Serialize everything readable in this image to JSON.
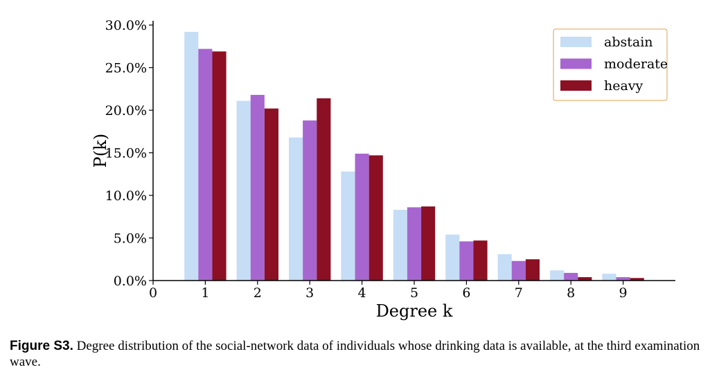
{
  "chart_data": {
    "type": "bar",
    "categories": [
      "1",
      "2",
      "3",
      "4",
      "5",
      "6",
      "7",
      "8",
      "9"
    ],
    "x": [
      1,
      2,
      3,
      4,
      5,
      6,
      7,
      8,
      9
    ],
    "series": [
      {
        "name": "abstain",
        "color": "#c5ddf5",
        "values": [
          29.2,
          21.1,
          16.8,
          12.8,
          8.3,
          5.4,
          3.1,
          1.2,
          0.8
        ]
      },
      {
        "name": "moderate",
        "color": "#a766cf",
        "values": [
          27.2,
          21.8,
          18.8,
          14.9,
          8.6,
          4.6,
          2.3,
          0.9,
          0.4
        ]
      },
      {
        "name": "heavy",
        "color": "#8b1023",
        "values": [
          26.9,
          20.2,
          21.4,
          14.7,
          8.7,
          4.7,
          2.5,
          0.4,
          0.3
        ]
      }
    ],
    "xticks": [
      "0",
      "1",
      "2",
      "3",
      "4",
      "5",
      "6",
      "7",
      "8",
      "9"
    ],
    "yticks": [
      "0.0%",
      "5.0%",
      "10.0%",
      "15.0%",
      "20.0%",
      "25.0%",
      "30.0%"
    ],
    "xlabel": "Degree k",
    "ylabel": "P(k)",
    "xlim": [
      0,
      10
    ],
    "ylim": [
      0,
      30.5
    ],
    "grid": false,
    "legend_position": "top-right",
    "legend_border_color": "#e0a050"
  },
  "caption": {
    "label": "Figure S3.",
    "text": " Degree distribution of the social-network data of individuals whose drinking data is available, at the third examination wave."
  }
}
